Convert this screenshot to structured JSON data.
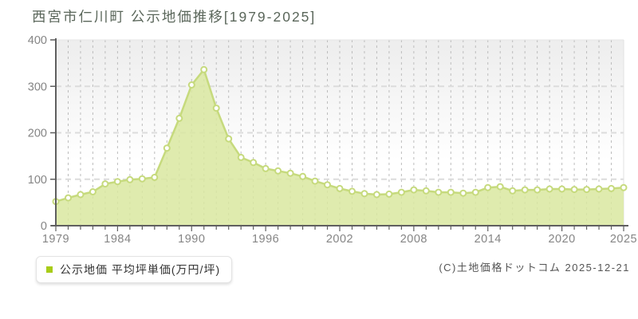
{
  "title": "西宮市仁川町 公示地価推移[1979-2025]",
  "legend": {
    "label": "公示地価 平均坪単価(万円/坪)",
    "marker_color": "#a8cc18"
  },
  "copyright": "(C)土地価格ドットコム 2025-12-21",
  "chart_data": {
    "type": "area",
    "title": "西宮市仁川町 公示地価推移[1979-2025]",
    "series_name": "公示地価 平均坪単価(万円/坪)",
    "x": [
      1979,
      1980,
      1981,
      1982,
      1983,
      1984,
      1985,
      1986,
      1987,
      1988,
      1989,
      1990,
      1991,
      1992,
      1993,
      1994,
      1995,
      1996,
      1997,
      1998,
      1999,
      2000,
      2001,
      2002,
      2003,
      2004,
      2005,
      2006,
      2007,
      2008,
      2009,
      2010,
      2011,
      2012,
      2013,
      2014,
      2015,
      2016,
      2017,
      2018,
      2019,
      2020,
      2021,
      2022,
      2023,
      2024,
      2025
    ],
    "values": [
      52,
      60,
      67,
      73,
      90,
      95,
      99,
      101,
      104,
      167,
      231,
      303,
      336,
      253,
      187,
      147,
      136,
      123,
      118,
      113,
      106,
      96,
      88,
      80,
      74,
      69,
      67,
      68,
      72,
      77,
      75,
      72,
      72,
      70,
      72,
      82,
      84,
      75,
      77,
      77,
      79,
      79,
      78,
      78,
      79,
      80,
      82
    ],
    "ylim": [
      0,
      400
    ],
    "yticks": [
      0,
      100,
      200,
      300,
      400
    ],
    "xtick_labeled_years": [
      1979,
      1984,
      1990,
      1996,
      2002,
      2008,
      2014,
      2020,
      2025
    ],
    "xlabel": "",
    "ylabel": "",
    "grid": true,
    "legend_position": "bottom-left",
    "colors": {
      "line": "#c6da7d",
      "fill": "#d9e7a0",
      "marker_fill": "#ffffff",
      "marker_stroke": "#c6da7d",
      "axis": "#5f5f5f",
      "tick_label": "#858585",
      "v_grid": "#bdbdbd",
      "h_grid": "#dcdcdc",
      "plot_bg_top": "#ededed",
      "plot_bg_bottom": "#ffffff"
    }
  }
}
